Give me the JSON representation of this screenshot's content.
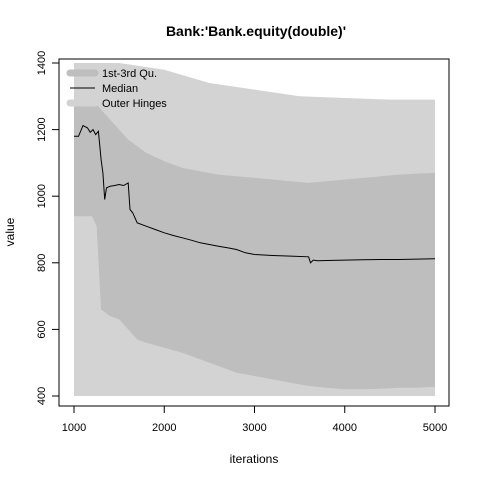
{
  "chart_data": {
    "type": "area",
    "title": "Bank:'Bank.equity(double)'",
    "xlabel": "iterations",
    "ylabel": "value",
    "xlim": [
      1000,
      5000
    ],
    "ylim": [
      400,
      1400
    ],
    "x_ticks": [
      1000,
      2000,
      3000,
      4000,
      5000
    ],
    "y_ticks": [
      400,
      600,
      800,
      1000,
      1200,
      1400
    ],
    "grid": false,
    "legend_position": "top-left",
    "legend": [
      {
        "label": "1st-3rd Qu.",
        "kind": "band-inner"
      },
      {
        "label": "Median",
        "kind": "line"
      },
      {
        "label": "Outer Hinges",
        "kind": "band-outer"
      }
    ],
    "colors": {
      "outer_band": "#d3d3d3",
      "inner_band": "#bebebe",
      "median": "#000000"
    },
    "series": [
      {
        "name": "Median",
        "x": [
          1000,
          1050,
          1100,
          1150,
          1180,
          1210,
          1240,
          1270,
          1300,
          1320,
          1340,
          1360,
          1400,
          1450,
          1500,
          1550,
          1600,
          1620,
          1650,
          1700,
          1800,
          1900,
          2000,
          2100,
          2200,
          2300,
          2400,
          2500,
          2600,
          2700,
          2800,
          2900,
          3000,
          3200,
          3400,
          3600,
          3620,
          3650,
          3700,
          3800,
          4000,
          4200,
          4400,
          4600,
          4800,
          5000
        ],
        "values": [
          1180,
          1180,
          1212,
          1205,
          1192,
          1200,
          1185,
          1195,
          1110,
          1070,
          990,
          1025,
          1030,
          1032,
          1035,
          1032,
          1040,
          960,
          950,
          920,
          910,
          900,
          890,
          882,
          875,
          868,
          860,
          855,
          850,
          845,
          840,
          830,
          825,
          822,
          820,
          818,
          800,
          808,
          806,
          807,
          808,
          809,
          810,
          810,
          811,
          812
        ]
      },
      {
        "name": "1st-3rd Qu.",
        "x": [
          1000,
          1100,
          1200,
          1250,
          1300,
          1350,
          1400,
          1500,
          1600,
          1700,
          1800,
          2000,
          2200,
          2400,
          2600,
          2800,
          3000,
          3200,
          3400,
          3600,
          3800,
          4000,
          4200,
          4400,
          4600,
          4800,
          5000
        ],
        "lower": [
          940,
          940,
          940,
          910,
          660,
          650,
          640,
          630,
          600,
          570,
          560,
          545,
          530,
          510,
          490,
          470,
          460,
          450,
          440,
          430,
          425,
          420,
          420,
          422,
          425,
          425,
          428
        ],
        "upper": [
          1280,
          1280,
          1280,
          1275,
          1260,
          1245,
          1230,
          1200,
          1170,
          1150,
          1130,
          1105,
          1085,
          1075,
          1065,
          1060,
          1055,
          1050,
          1045,
          1040,
          1045,
          1050,
          1055,
          1060,
          1065,
          1068,
          1070
        ]
      },
      {
        "name": "Outer Hinges",
        "x": [
          1000,
          1500,
          2000,
          2500,
          3000,
          3500,
          4000,
          4500,
          5000
        ],
        "lower": [
          400,
          400,
          400,
          400,
          400,
          400,
          400,
          400,
          400
        ],
        "upper": [
          1400,
          1400,
          1380,
          1340,
          1320,
          1300,
          1295,
          1290,
          1290
        ]
      }
    ]
  }
}
